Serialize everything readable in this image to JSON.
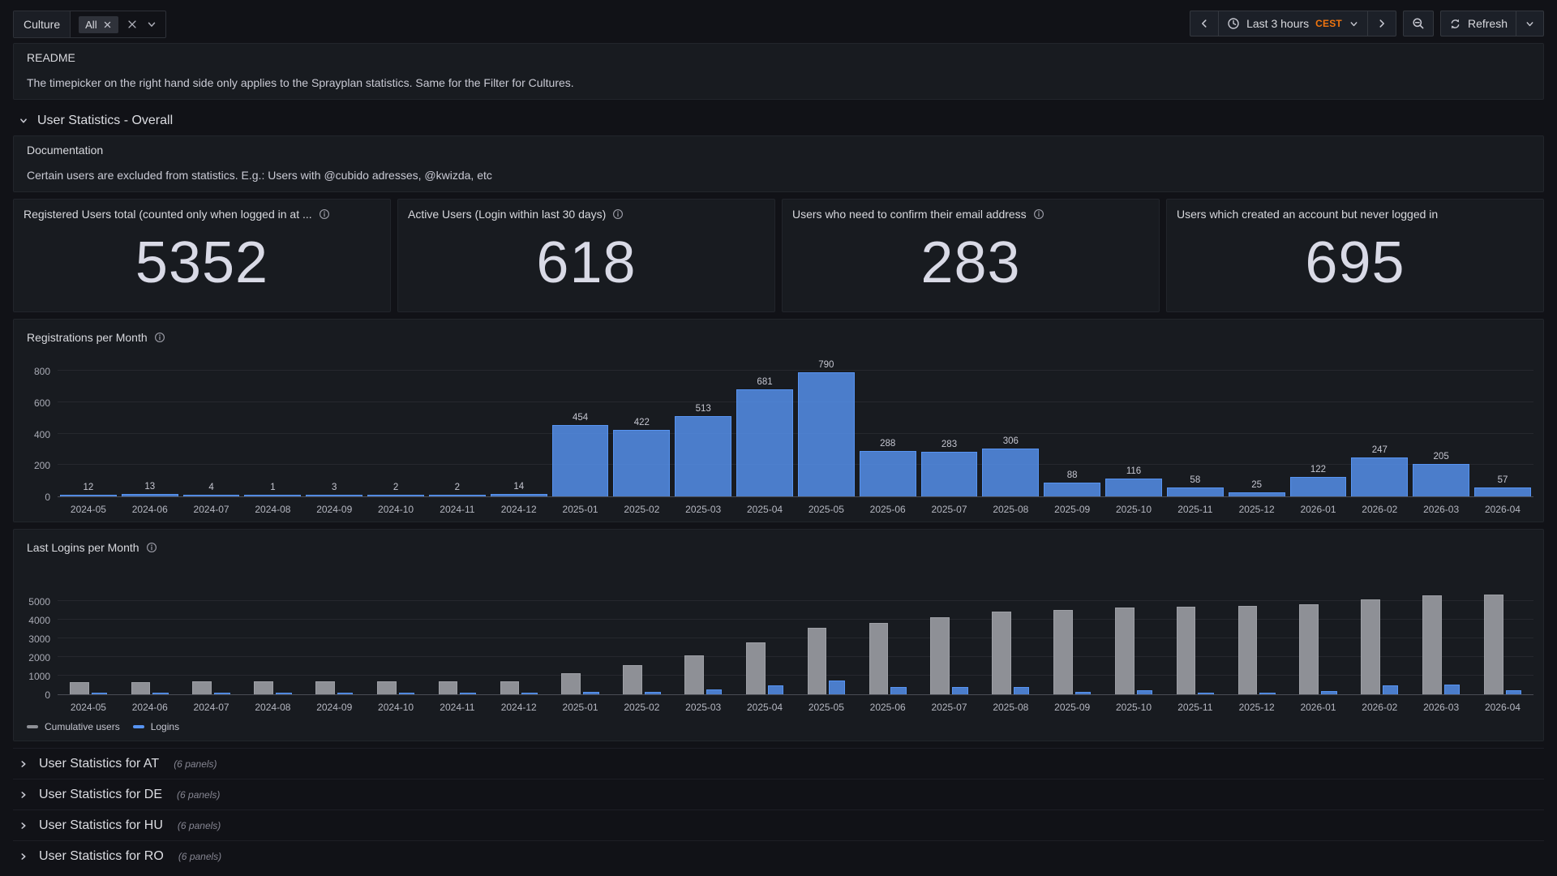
{
  "toolbar": {
    "filter": {
      "label": "Culture",
      "chip_value": "All"
    },
    "time": {
      "range_label": "Last 3 hours",
      "timezone": "CEST",
      "refresh_label": "Refresh"
    }
  },
  "readme": {
    "title": "README",
    "body": "The timepicker on the right hand side only applies to the Sprayplan statistics. Same for the Filter for Cultures."
  },
  "overall_section": {
    "title": "User Statistics - Overall"
  },
  "documentation": {
    "title": "Documentation",
    "body": "Certain users are excluded from statistics. E.g.: Users with @cubido adresses, @kwizda, etc"
  },
  "stats": [
    {
      "title": "Registered Users total (counted only when logged in at ...",
      "value": "5352",
      "has_info": true
    },
    {
      "title": "Active Users (Login within last 30 days)",
      "value": "618",
      "has_info": true
    },
    {
      "title": "Users who need to confirm their email address",
      "value": "283",
      "has_info": true
    },
    {
      "title": "Users which created an account but never logged in",
      "value": "695",
      "has_info": false
    }
  ],
  "collapsed_sections": [
    {
      "title": "User Statistics for AT",
      "meta": "(6 panels)"
    },
    {
      "title": "User Statistics for DE",
      "meta": "(6 panels)"
    },
    {
      "title": "User Statistics for HU",
      "meta": "(6 panels)"
    },
    {
      "title": "User Statistics for RO",
      "meta": "(6 panels)"
    }
  ],
  "colors": {
    "page_bg": "#111217",
    "panel_bg": "#181B20",
    "blue_series": "#5794F2",
    "gray_series": "#8E9096",
    "timezone_orange": "#F0750F"
  },
  "chart_data": [
    {
      "type": "bar",
      "title": "Registrations per Month",
      "categories": [
        "2024-05",
        "2024-06",
        "2024-07",
        "2024-08",
        "2024-09",
        "2024-10",
        "2024-11",
        "2024-12",
        "2025-01",
        "2025-02",
        "2025-03",
        "2025-04",
        "2025-05",
        "2025-06",
        "2025-07",
        "2025-08",
        "2025-09",
        "2025-10",
        "2025-11",
        "2025-12",
        "2026-01",
        "2026-02",
        "2026-03",
        "2026-04"
      ],
      "values": [
        12,
        13,
        4,
        1,
        3,
        2,
        2,
        14,
        454,
        422,
        513,
        681,
        790,
        288,
        283,
        306,
        88,
        116,
        58,
        25,
        122,
        247,
        205,
        57
      ],
      "value_labels": true,
      "ylim": [
        0,
        800
      ],
      "yticks": [
        0,
        200,
        400,
        600,
        800
      ],
      "bar_color": "#5794F2",
      "legend": false,
      "grid": true
    },
    {
      "type": "bar",
      "title": "Last Logins per Month",
      "categories": [
        "2024-05",
        "2024-06",
        "2024-07",
        "2024-08",
        "2024-09",
        "2024-10",
        "2024-11",
        "2024-12",
        "2025-01",
        "2025-02",
        "2025-03",
        "2025-04",
        "2025-05",
        "2025-06",
        "2025-07",
        "2025-08",
        "2025-09",
        "2025-10",
        "2025-11",
        "2025-12",
        "2026-01",
        "2026-02",
        "2026-03",
        "2026-04"
      ],
      "series": [
        {
          "name": "Cumulative users",
          "color": "#8E9096",
          "values": [
            658,
            671,
            675,
            676,
            679,
            681,
            683,
            697,
            1151,
            1573,
            2086,
            2767,
            3557,
            3845,
            4128,
            4434,
            4522,
            4638,
            4696,
            4721,
            4843,
            5090,
            5295,
            5352
          ]
        },
        {
          "name": "Logins",
          "color": "#5794F2",
          "values": [
            45,
            40,
            40,
            40,
            45,
            45,
            45,
            55,
            140,
            150,
            250,
            480,
            750,
            370,
            380,
            390,
            120,
            230,
            90,
            45,
            160,
            490,
            500,
            230
          ]
        }
      ],
      "value_labels": false,
      "ylim": [
        0,
        5400
      ],
      "yticks": [
        0,
        1000,
        2000,
        3000,
        4000,
        5000
      ],
      "legend": "bottom",
      "grid": true
    }
  ]
}
